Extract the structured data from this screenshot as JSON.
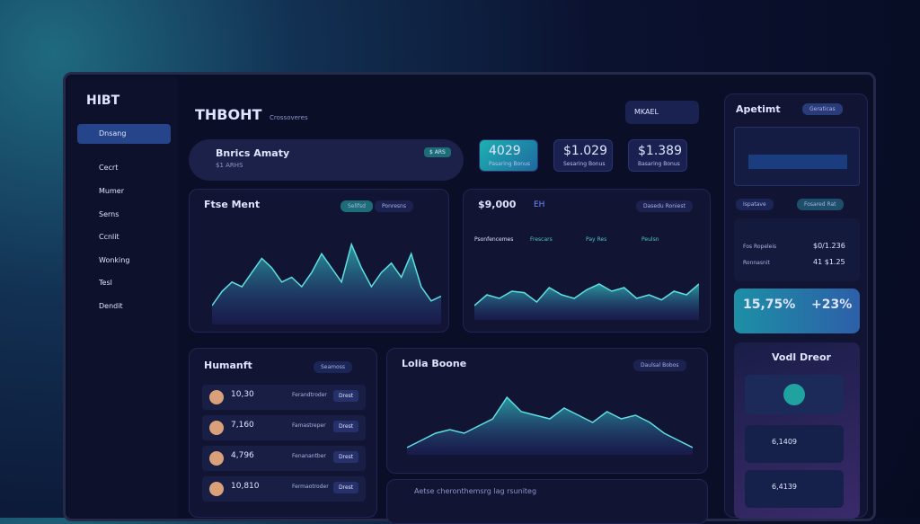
{
  "sidebar": {
    "logo": "HIBT",
    "menu": [
      "Dnsang",
      "Cecrt",
      "Mumer",
      "Serns",
      "Ccnlit",
      "Wonking",
      "Tesl",
      "Dendit"
    ]
  },
  "header": {
    "title": "THBOHT",
    "subtitle": "Crossoveres",
    "button": "MKAEL"
  },
  "summary": {
    "title": "Bnrics Amaty",
    "subtitle": "$1 ARHS",
    "badge": "$ ARS"
  },
  "stats": [
    {
      "value": "4029",
      "label": "Pasaring Bonus"
    },
    {
      "value": "$1.029",
      "label": "Sesaring Bonus"
    },
    {
      "value": "$1.389",
      "label": "Basaring Bonus"
    }
  ],
  "charts": [
    {
      "type": "area",
      "title": "Ftse Ment",
      "tabs": [
        "Sellfsd",
        "Ponresns"
      ],
      "ylim": [
        0,
        100
      ],
      "values": [
        20,
        35,
        45,
        40,
        55,
        70,
        60,
        45,
        50,
        40,
        55,
        75,
        60,
        45,
        85,
        60,
        40,
        55,
        65,
        50,
        75,
        40,
        25,
        30
      ]
    },
    {
      "type": "area",
      "title": "$9,000",
      "unit": "EH",
      "tabs": [
        "Dasedu Roniest"
      ],
      "legend": [
        "Psonfencemes",
        "Frescars",
        "Pay Res",
        "Peulsn"
      ],
      "ylim": [
        0,
        100
      ],
      "values": [
        20,
        35,
        30,
        40,
        38,
        25,
        45,
        35,
        30,
        42,
        50,
        40,
        45,
        30,
        35,
        28,
        40,
        35,
        50
      ]
    },
    {
      "type": "area",
      "title": "Lolia Boone",
      "tabs": [
        "Daulsal Bobos"
      ],
      "ylim": [
        0,
        100
      ],
      "values": [
        10,
        20,
        30,
        35,
        30,
        40,
        50,
        80,
        60,
        55,
        50,
        65,
        55,
        45,
        60,
        50,
        55,
        45,
        30,
        20,
        10
      ]
    }
  ],
  "list": {
    "title": "Humanft",
    "filter": "Seamoss",
    "items": [
      {
        "value": "10,30",
        "label": "Ferandtroder",
        "action": "Drest"
      },
      {
        "value": "7,160",
        "label": "Famastreper",
        "action": "Drest"
      },
      {
        "value": "4,796",
        "label": "Fenanantber",
        "action": "Drest"
      },
      {
        "value": "10,810",
        "label": "Fermaotroder",
        "action": "Drest"
      }
    ]
  },
  "bottom": {
    "title": "Aetse cheronthemsrg lag rsuniteg"
  },
  "right": {
    "title": "Apetimt",
    "button": "Geraticas",
    "tabs": [
      "Ispatave",
      "Fosared Rat"
    ],
    "rows": [
      {
        "label": "Fos Ropeleis",
        "value": "$0/1.236"
      },
      {
        "label": "Ronnasnit",
        "value": "41 $1.25"
      }
    ],
    "highlight": {
      "left": "15,75%",
      "right": "+23%"
    },
    "wallet": {
      "title": "Vodl Dreor",
      "items": [
        "6,1409",
        "6,4139"
      ]
    }
  }
}
